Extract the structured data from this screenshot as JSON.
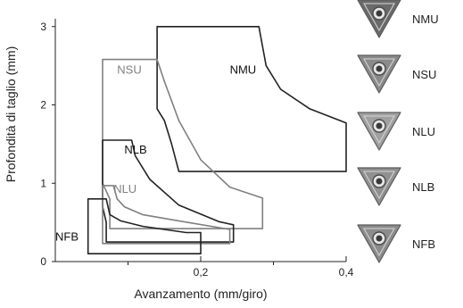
{
  "chart_data": {
    "type": "area",
    "title": "",
    "xlabel": "Avanzamento (mm/giro)",
    "ylabel": "Profondità di taglio (mm)",
    "xlim": [
      0,
      0.4
    ],
    "ylim": [
      0,
      3.1
    ],
    "x_ticks": [
      {
        "value": 0.2,
        "label": "0,2"
      },
      {
        "value": 0.4,
        "label": "0,4"
      }
    ],
    "x_minor_ticks": [
      0.1,
      0.3
    ],
    "y_ticks": [
      {
        "value": 0,
        "label": "0"
      },
      {
        "value": 1,
        "label": "1"
      },
      {
        "value": 2,
        "label": "2"
      },
      {
        "value": 3,
        "label": "3"
      }
    ],
    "series": [
      {
        "name": "NMU",
        "color": "#222222",
        "label_at": [
          0.24,
          2.4
        ],
        "label_color": "#111111",
        "points": [
          [
            0.14,
            3.0
          ],
          [
            0.28,
            3.0
          ],
          [
            0.29,
            2.5
          ],
          [
            0.31,
            2.2
          ],
          [
            0.35,
            1.95
          ],
          [
            0.4,
            1.77
          ],
          [
            0.4,
            1.15
          ],
          [
            0.17,
            1.15
          ],
          [
            0.16,
            1.5
          ],
          [
            0.15,
            1.8
          ],
          [
            0.14,
            1.95
          ]
        ]
      },
      {
        "name": "NSU",
        "color": "#808080",
        "label_at": [
          0.085,
          2.4
        ],
        "label_color": "#808080",
        "points": [
          [
            0.065,
            2.58
          ],
          [
            0.14,
            2.58
          ],
          [
            0.15,
            2.3
          ],
          [
            0.17,
            1.8
          ],
          [
            0.2,
            1.3
          ],
          [
            0.24,
            0.95
          ],
          [
            0.285,
            0.81
          ],
          [
            0.285,
            0.42
          ],
          [
            0.075,
            0.42
          ],
          [
            0.075,
            0.8
          ],
          [
            0.065,
            1.0
          ]
        ]
      },
      {
        "name": "NLB",
        "color": "#222222",
        "label_at": [
          0.095,
          1.38
        ],
        "label_color": "#111111",
        "points": [
          [
            0.065,
            1.55
          ],
          [
            0.105,
            1.55
          ],
          [
            0.11,
            1.35
          ],
          [
            0.13,
            1.05
          ],
          [
            0.17,
            0.72
          ],
          [
            0.225,
            0.51
          ],
          [
            0.245,
            0.47
          ],
          [
            0.245,
            0.25
          ],
          [
            0.07,
            0.25
          ],
          [
            0.07,
            0.5
          ],
          [
            0.065,
            0.7
          ]
        ]
      },
      {
        "name": "NLU",
        "color": "#808080",
        "label_at": [
          0.08,
          0.88
        ],
        "label_color": "#808080",
        "points": [
          [
            0.065,
            0.97
          ],
          [
            0.08,
            0.97
          ],
          [
            0.085,
            0.8
          ],
          [
            0.095,
            0.7
          ],
          [
            0.12,
            0.6
          ],
          [
            0.17,
            0.52
          ],
          [
            0.24,
            0.41
          ],
          [
            0.24,
            0.23
          ],
          [
            0.065,
            0.23
          ]
        ]
      },
      {
        "name": "NFB",
        "color": "#222222",
        "label_at": [
          0.0,
          0.27
        ],
        "label_color": "#111111",
        "points": [
          [
            0.045,
            0.8
          ],
          [
            0.07,
            0.8
          ],
          [
            0.075,
            0.6
          ],
          [
            0.09,
            0.52
          ],
          [
            0.12,
            0.45
          ],
          [
            0.18,
            0.37
          ],
          [
            0.2,
            0.37
          ],
          [
            0.2,
            0.1
          ],
          [
            0.045,
            0.1
          ]
        ]
      }
    ]
  },
  "legend": [
    {
      "name": "NMU",
      "tone": "#6a6a6a"
    },
    {
      "name": "NSU",
      "tone": "#8a8a8a"
    },
    {
      "name": "NLU",
      "tone": "#a0a0a0"
    },
    {
      "name": "NLB",
      "tone": "#909090"
    },
    {
      "name": "NFB",
      "tone": "#8c8c8c"
    }
  ]
}
